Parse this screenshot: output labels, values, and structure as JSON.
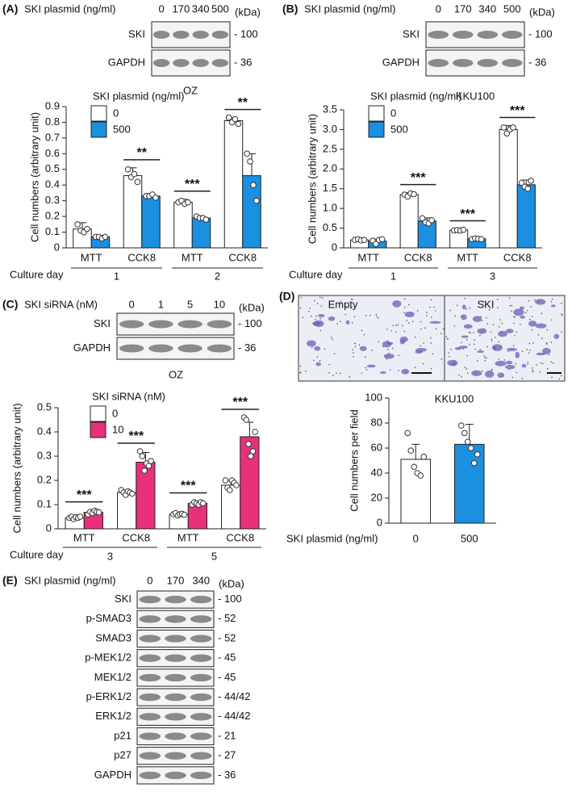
{
  "blots": [
    {
      "label": "(A)",
      "header": "SKI plasmid (ng/ml)",
      "lanes": [
        "0",
        "170",
        "340",
        "500"
      ],
      "unit": "(kDa)",
      "rows": [
        {
          "name": "SKI",
          "size": "- 100"
        },
        {
          "name": "GAPDH",
          "size": "- 36"
        }
      ],
      "cell_line": "OZ"
    },
    {
      "label": "(B)",
      "header": "SKI plasmid (ng/ml)",
      "lanes": [
        "0",
        "170",
        "340",
        "500"
      ],
      "unit": "(kDa)",
      "rows": [
        {
          "name": "SKI",
          "size": "- 100"
        },
        {
          "name": "GAPDH",
          "size": "- 36"
        }
      ],
      "cell_line": "KKU100"
    },
    {
      "label": "(C)",
      "header": "SKI siRNA (nM)",
      "lanes": [
        "0",
        "1",
        "5",
        "10"
      ],
      "unit": "(kDa)",
      "rows": [
        {
          "name": "SKI",
          "size": "- 100"
        },
        {
          "name": "GAPDH",
          "size": "- 36"
        }
      ],
      "cell_line": "OZ"
    },
    {
      "label": "(E)",
      "header": "SKI plasmid (ng/ml)",
      "lanes": [
        "0",
        "170",
        "340"
      ],
      "unit": "(kDa)",
      "rows": [
        {
          "name": "SKI",
          "size": "- 100"
        },
        {
          "name": "p-SMAD3",
          "size": "- 52"
        },
        {
          "name": "SMAD3",
          "size": "- 52"
        },
        {
          "name": "p-MEK1/2",
          "size": "- 45"
        },
        {
          "name": "MEK1/2",
          "size": "- 45"
        },
        {
          "name": "p-ERK1/2",
          "size": "- 44/42"
        },
        {
          "name": "ERK1/2",
          "size": "- 44/42"
        },
        {
          "name": "p21",
          "size": "- 21"
        },
        {
          "name": "p27",
          "size": "- 27"
        },
        {
          "name": "GAPDH",
          "size": "- 36"
        }
      ]
    }
  ],
  "panel_d": {
    "label": "(D)",
    "image_labels": [
      "Empty",
      "SKI"
    ]
  },
  "chart_data": [
    {
      "type": "bar",
      "legend_title": "SKI plasmid (ng/ml)",
      "y_label": "Cell numbers (arbitrary unit)",
      "categories": [
        "MTT",
        "CCK8",
        "MTT",
        "CCK8"
      ],
      "group_label": "Culture day",
      "groups": [
        "1",
        "2"
      ],
      "ylim": [
        0,
        0.9
      ],
      "yticks": [
        0,
        0.1,
        0.2,
        0.3,
        0.4,
        0.5,
        0.6,
        0.7,
        0.8,
        0.9
      ],
      "significance": [
        null,
        "**",
        "***",
        "**"
      ],
      "series": [
        {
          "name": "0",
          "color": "#ffffff",
          "values": [
            0.12,
            0.46,
            0.29,
            0.81
          ],
          "errors": [
            0.04,
            0.05,
            0.02,
            0.02
          ],
          "points": [
            [
              0.15,
              0.11,
              0.1,
              0.12
            ],
            [
              0.5,
              0.45,
              0.47,
              0.42
            ],
            [
              0.29,
              0.3,
              0.28,
              0.29
            ],
            [
              0.83,
              0.8,
              0.82,
              0.79
            ]
          ]
        },
        {
          "name": "500",
          "color": "#1b8fe0",
          "values": [
            0.07,
            0.33,
            0.19,
            0.46
          ],
          "errors": [
            0.01,
            0.01,
            0.01,
            0.14
          ],
          "points": [
            [
              0.07,
              0.07,
              0.06,
              0.07
            ],
            [
              0.33,
              0.33,
              0.34,
              0.32
            ],
            [
              0.2,
              0.19,
              0.19,
              0.18
            ],
            [
              0.6,
              0.55,
              0.4,
              0.3
            ]
          ]
        }
      ]
    },
    {
      "type": "bar",
      "legend_title": "SKI plasmid (ng/ml)",
      "y_label": "Cell numbers (arbitrary unit)",
      "categories": [
        "MTT",
        "CCK8",
        "MTT",
        "CCK8"
      ],
      "group_label": "Culture day",
      "groups": [
        "1",
        "3"
      ],
      "ylim": [
        0,
        3.5
      ],
      "yticks": [
        0,
        0.5,
        {
          "value": 1,
          "label": "1.0"
        },
        1.5,
        {
          "value": 2,
          "label": "2.0"
        },
        2.5,
        {
          "value": 3,
          "label": "3.0"
        },
        3.5
      ],
      "significance": [
        null,
        "***",
        "***",
        "***"
      ],
      "series": [
        {
          "name": "0",
          "color": "#ffffff",
          "values": [
            0.2,
            1.35,
            0.45,
            3.0
          ],
          "errors": [
            0.03,
            0.05,
            0.03,
            0.1
          ],
          "points": [
            [
              0.2,
              0.22,
              0.19,
              0.2
            ],
            [
              1.35,
              1.3,
              1.38,
              1.36
            ],
            [
              0.44,
              0.45,
              0.44,
              0.46
            ],
            [
              3.05,
              2.9,
              3.0,
              3.05
            ]
          ]
        },
        {
          "name": "500",
          "color": "#1b8fe0",
          "values": [
            0.17,
            0.68,
            0.23,
            1.6
          ],
          "errors": [
            0.05,
            0.08,
            0.02,
            0.12
          ],
          "points": [
            [
              0.18,
              0.1,
              0.2,
              0.22
            ],
            [
              0.75,
              0.65,
              0.62,
              0.7
            ],
            [
              0.22,
              0.24,
              0.23,
              0.22
            ],
            [
              1.65,
              1.55,
              1.5,
              1.7
            ]
          ]
        }
      ]
    },
    {
      "type": "bar",
      "legend_title": "SKI siRNA (nM)",
      "y_label": "Cell numbers (arbitrary unit)",
      "categories": [
        "MTT",
        "CCK8",
        "MTT",
        "CCK8"
      ],
      "group_label": "Culture day",
      "groups": [
        "3",
        "5"
      ],
      "ylim": [
        0,
        0.5
      ],
      "yticks": [
        0,
        0.1,
        0.2,
        0.3,
        0.4,
        0.5
      ],
      "significance": [
        "***",
        "***",
        "***",
        "***"
      ],
      "series": [
        {
          "name": "0",
          "color": "#ffffff",
          "values": [
            0.045,
            0.15,
            0.06,
            0.18
          ],
          "errors": [
            0.005,
            0.01,
            0.005,
            0.02
          ],
          "points": [
            [
              0.045,
              0.05,
              0.04,
              0.048,
              0.045,
              0.05
            ],
            [
              0.16,
              0.15,
              0.14,
              0.155,
              0.15,
              0.145
            ],
            [
              0.06,
              0.065,
              0.055,
              0.06,
              0.062,
              0.058
            ],
            [
              0.2,
              0.17,
              0.16,
              0.2,
              0.19,
              0.18
            ]
          ]
        },
        {
          "name": "10",
          "color": "#e8317a",
          "values": [
            0.068,
            0.275,
            0.105,
            0.38
          ],
          "errors": [
            0.01,
            0.04,
            0.01,
            0.06
          ],
          "points": [
            [
              0.06,
              0.07,
              0.065,
              0.075,
              0.07,
              0.068
            ],
            [
              0.32,
              0.3,
              0.24,
              0.27,
              0.26,
              0.28
            ],
            [
              0.1,
              0.11,
              0.105,
              0.1,
              0.11,
              0.105
            ],
            [
              0.46,
              0.45,
              0.35,
              0.3,
              0.32,
              0.4
            ]
          ]
        }
      ]
    },
    {
      "type": "bar",
      "title": "KKU100",
      "y_label": "Cell numbers per field",
      "x_label": "SKI plasmid (ng/ml)",
      "categories": [
        "0",
        "500"
      ],
      "ylim": [
        0,
        100
      ],
      "yticks": [
        0,
        20,
        40,
        60,
        80,
        100
      ],
      "series": [
        {
          "colors": [
            "#ffffff",
            "#1b8fe0"
          ],
          "values": [
            51,
            63
          ],
          "errors": [
            12,
            16
          ],
          "points": [
            [
              72,
              58,
              45,
              40,
              38,
              53
            ],
            [
              78,
              72,
              65,
              60,
              48,
              55
            ]
          ]
        }
      ]
    }
  ]
}
